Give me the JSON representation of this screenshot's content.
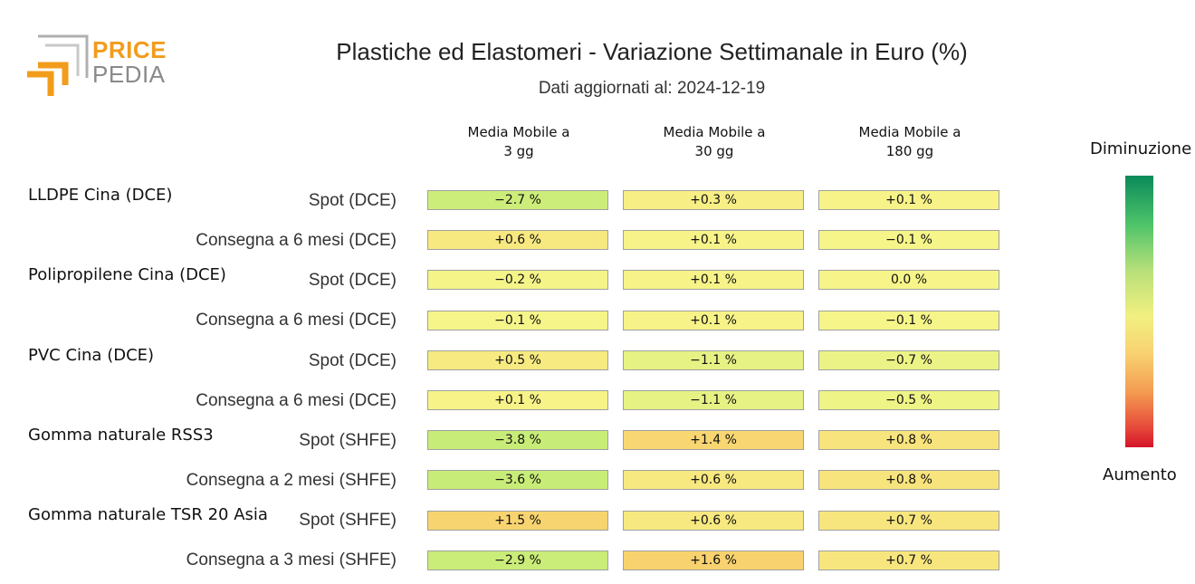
{
  "logo": {
    "price": "PRICE",
    "pedia": "PEDIA",
    "orange": "#f29c1c",
    "gray": "#b0b0b0"
  },
  "title": "Plastiche ed Elastomeri - Variazione Settimanale in Euro (%)",
  "subtitle": "Dati aggiornati al: 2024-12-19",
  "chart_data": {
    "type": "heatmap",
    "columns": [
      {
        "line1": "Media Mobile a",
        "line2": "3 gg"
      },
      {
        "line1": "Media Mobile a",
        "line2": "30 gg"
      },
      {
        "line1": "Media Mobile a",
        "line2": "180 gg"
      }
    ],
    "groups": [
      {
        "name": "LLDPE Cina (DCE)",
        "rows": [
          {
            "label": "Spot (DCE)",
            "values": [
              -2.7,
              0.3,
              0.1
            ],
            "texts": [
              "−2.7 %",
              "+0.3 %",
              "+0.1 %"
            ]
          },
          {
            "label": "Consegna a 6 mesi (DCE)",
            "values": [
              0.6,
              0.1,
              -0.1
            ],
            "texts": [
              "+0.6 %",
              "+0.1 %",
              "−0.1 %"
            ]
          }
        ]
      },
      {
        "name": "Polipropilene Cina (DCE)",
        "rows": [
          {
            "label": "Spot (DCE)",
            "values": [
              -0.2,
              0.1,
              0.0
            ],
            "texts": [
              "−0.2 %",
              "+0.1 %",
              "0.0 %"
            ]
          },
          {
            "label": "Consegna a 6 mesi (DCE)",
            "values": [
              -0.1,
              0.1,
              -0.1
            ],
            "texts": [
              "−0.1 %",
              "+0.1 %",
              "−0.1 %"
            ]
          }
        ]
      },
      {
        "name": "PVC Cina (DCE)",
        "rows": [
          {
            "label": "Spot (DCE)",
            "values": [
              0.5,
              -1.1,
              -0.7
            ],
            "texts": [
              "+0.5 %",
              "−1.1 %",
              "−0.7 %"
            ]
          },
          {
            "label": "Consegna a 6 mesi (DCE)",
            "values": [
              0.1,
              -1.1,
              -0.5
            ],
            "texts": [
              "+0.1 %",
              "−1.1 %",
              "−0.5 %"
            ]
          }
        ]
      },
      {
        "name": "Gomma naturale RSS3",
        "rows": [
          {
            "label": "Spot (SHFE)",
            "values": [
              -3.8,
              1.4,
              0.8
            ],
            "texts": [
              "−3.8 %",
              "+1.4 %",
              "+0.8 %"
            ]
          },
          {
            "label": "Consegna a 2 mesi (SHFE)",
            "values": [
              -3.6,
              0.6,
              0.8
            ],
            "texts": [
              "−3.6 %",
              "+0.6 %",
              "+0.8 %"
            ]
          }
        ]
      },
      {
        "name": "Gomma naturale TSR 20 Asia",
        "rows": [
          {
            "label": "Spot (SHFE)",
            "values": [
              1.5,
              0.6,
              0.7
            ],
            "texts": [
              "+1.5 %",
              "+0.6 %",
              "+0.7 %"
            ]
          },
          {
            "label": "Consegna a 3 mesi (SHFE)",
            "values": [
              -2.9,
              1.6,
              0.7
            ],
            "texts": [
              "−2.9 %",
              "+1.6 %",
              "+0.7 %"
            ]
          }
        ]
      }
    ],
    "legend": {
      "top": "Diminuzione",
      "bottom": "Aumento"
    },
    "colors": {
      "decrease": "#0a8a5a",
      "neutral": "#f7f58a",
      "increase": "#d4142a"
    }
  }
}
